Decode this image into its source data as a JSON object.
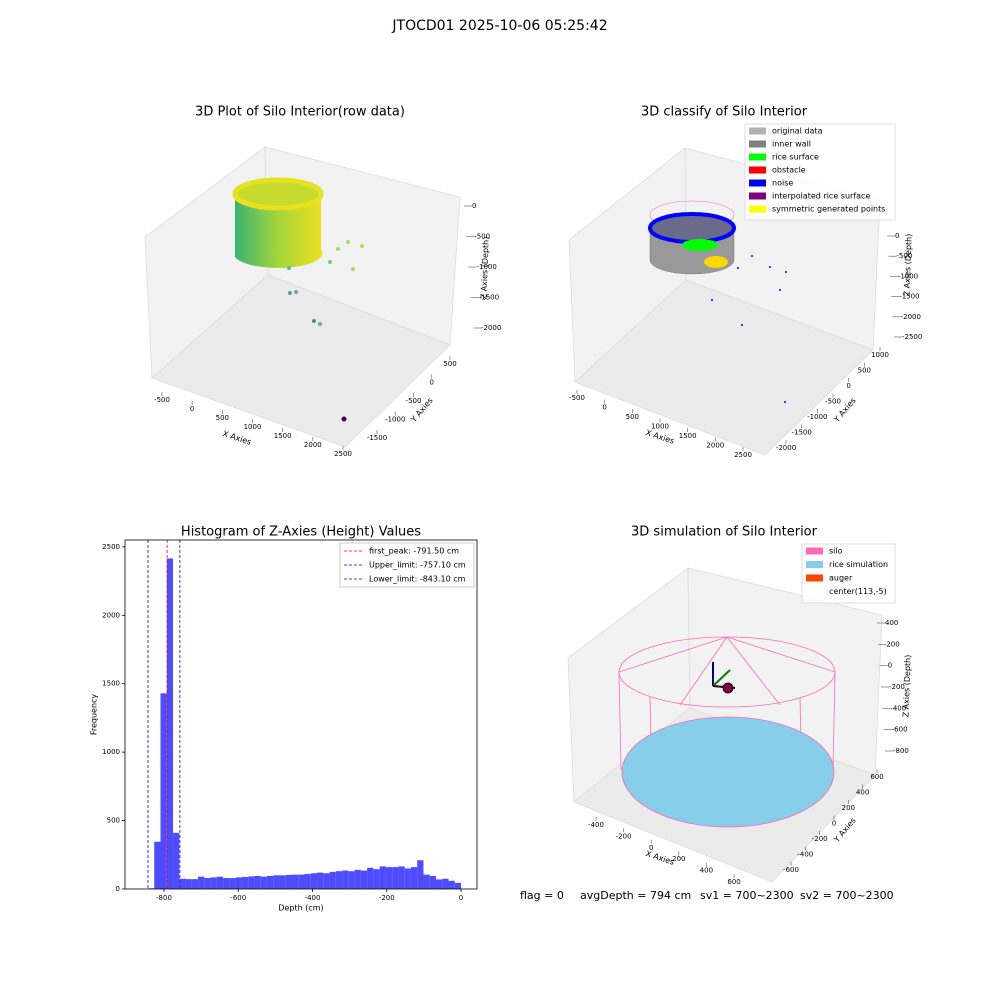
{
  "title": "JTOCD01 2025-10-06 05:25:42",
  "footer": [
    "flag = 0",
    "avgDepth = 794 cm",
    "sv1 = 700~2300",
    "sv2 = 700~2300"
  ],
  "chart_data": [
    {
      "type": "scatter3d",
      "title": "3D Plot of Silo Interior(row data)",
      "xlabel": "X Axies",
      "ylabel": "Y Axies",
      "zlabel": "Z Axies (Depth)",
      "xticks": [
        -500,
        0,
        500,
        1000,
        1500,
        2000,
        2500
      ],
      "yticks": [
        500,
        0,
        -500,
        -1000,
        -1500
      ],
      "zticks": [
        0,
        -500,
        -1000,
        -1500,
        -2000
      ]
    },
    {
      "type": "scatter3d",
      "title": "3D classify of Silo Interior",
      "xlabel": "X Axies",
      "ylabel": "Y Axies",
      "zlabel": "Z Axies (Depth)",
      "xticks": [
        -500,
        0,
        500,
        1000,
        1500,
        2000,
        2500
      ],
      "yticks": [
        1000,
        500,
        0,
        -500,
        -1000,
        -1500,
        -2000
      ],
      "zticks": [
        0,
        -500,
        -1000,
        -1500,
        -2000,
        -2500
      ],
      "legend_loc": "upper right",
      "legend": [
        {
          "name": "original data",
          "color": "#b0b0b0"
        },
        {
          "name": "inner wall",
          "color": "#808080"
        },
        {
          "name": "rice surface",
          "color": "#00ff00"
        },
        {
          "name": "obstacle",
          "color": "#ff0000"
        },
        {
          "name": "noise",
          "color": "#0000ff"
        },
        {
          "name": "interpolated rice surface",
          "color": "#800080"
        },
        {
          "name": "symmetric generated points",
          "color": "#ffff00"
        }
      ]
    },
    {
      "type": "histogram",
      "title": "Histogram of Z-Axies (Height) Values",
      "xlabel": "Depth (cm)",
      "ylabel": "Frequency",
      "color": "#4d4dff",
      "bins": [
        -843.1,
        -826.24,
        -809.38,
        -792.51,
        -775.65,
        -758.79,
        -741.93,
        -725.07,
        -708.2,
        -691.34,
        -674.48,
        -657.62,
        -640.76,
        -623.89,
        -607.03,
        -590.17,
        -573.31,
        -556.45,
        -539.58,
        -522.72,
        -505.86,
        -489.0,
        -472.14,
        -455.27,
        -438.41,
        -421.55,
        -404.69,
        -387.83,
        -370.96,
        -354.1,
        -337.24,
        -320.38,
        -303.52,
        -286.65,
        -269.79,
        -252.93,
        -236.07,
        -219.21,
        -202.34,
        -185.48,
        -168.62,
        -151.76,
        -134.9,
        -118.03,
        -101.17,
        -84.31,
        -67.45,
        -50.59,
        -33.72,
        -16.86,
        0
      ],
      "counts": [
        5,
        345,
        1430,
        2415,
        410,
        75,
        72,
        72,
        90,
        80,
        85,
        90,
        80,
        80,
        85,
        88,
        92,
        95,
        90,
        95,
        100,
        100,
        103,
        105,
        105,
        110,
        115,
        120,
        115,
        125,
        130,
        135,
        130,
        140,
        135,
        155,
        145,
        165,
        160,
        160,
        165,
        150,
        160,
        210,
        105,
        95,
        70,
        75,
        60,
        45
      ],
      "lines": [
        {
          "name": "first_peak: -791.50 cm",
          "value": -791.5,
          "color": "#ff0000"
        },
        {
          "name": "Upper_limit: -757.10 cm",
          "value": -757.1,
          "color": "#0000ff"
        },
        {
          "name": "Lower_limit: -843.10 cm",
          "value": -843.1,
          "color": "#0000ff"
        }
      ],
      "legend_loc": "upper right",
      "xlim": [
        -905,
        43
      ],
      "ylim": [
        0,
        2550
      ],
      "xticks": [
        -800,
        -600,
        -400,
        -200,
        0
      ],
      "yticks": [
        0,
        500,
        1000,
        1500,
        2000,
        2500
      ]
    },
    {
      "type": "surface3d",
      "title": "3D simulation of Silo Interior",
      "xlabel": "X Axies",
      "ylabel": "Y Axies",
      "zlabel": "Z Axies (Depth)",
      "xticks": [
        -400,
        -200,
        0,
        200,
        400,
        600
      ],
      "yticks": [
        600,
        400,
        200,
        0,
        -200,
        -400,
        -600
      ],
      "zticks": [
        400,
        200,
        0,
        -200,
        -400,
        -600,
        -800
      ],
      "legend_loc": "upper right",
      "legend": [
        {
          "name": "silo",
          "color": "#ff69b4"
        },
        {
          "name": "rice simulation",
          "color": "#87ceeb"
        },
        {
          "name": "auger",
          "color": "#ff4500"
        },
        {
          "name": "center(113,-5)",
          "color": "#ffffff"
        }
      ]
    }
  ]
}
